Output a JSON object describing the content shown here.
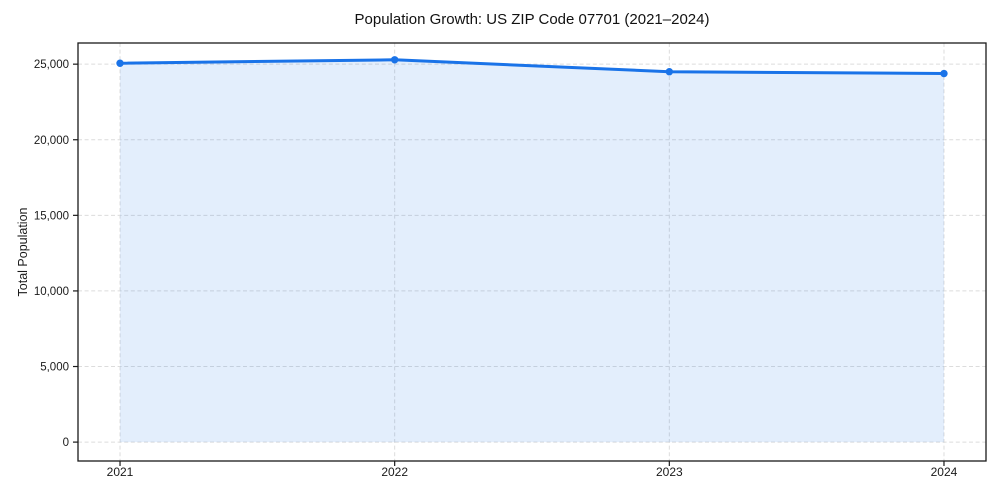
{
  "page": {
    "background": "#ffffff"
  },
  "chart_data": {
    "type": "area",
    "title": "Population Growth: US ZIP Code 07701 (2021–2024)",
    "xlabel": "",
    "ylabel": "Total Population",
    "x": [
      2021,
      2022,
      2023,
      2024
    ],
    "xtick_labels": [
      "2021",
      "2022",
      "2023",
      "2024"
    ],
    "series": [
      {
        "name": "Total Population",
        "values": [
          25060,
          25290,
          24500,
          24380
        ],
        "line_color": "#1a73e8",
        "fill_color": "rgba(26,115,232,0.12)",
        "marker": "circle"
      }
    ],
    "yticks": [
      0,
      5000,
      10000,
      15000,
      20000,
      25000
    ],
    "ytick_labels": [
      "0",
      "5,000",
      "10,000",
      "15,000",
      "20,000",
      "25,000"
    ],
    "xlim": [
      2020.847,
      2024.153
    ],
    "ylim": [
      -1250,
      26400
    ],
    "fill_to": 0,
    "grid": true,
    "grid_style": "dashed",
    "legend": false,
    "axis_color": "#1a1a1a",
    "grid_color": "#dcdcdc"
  }
}
